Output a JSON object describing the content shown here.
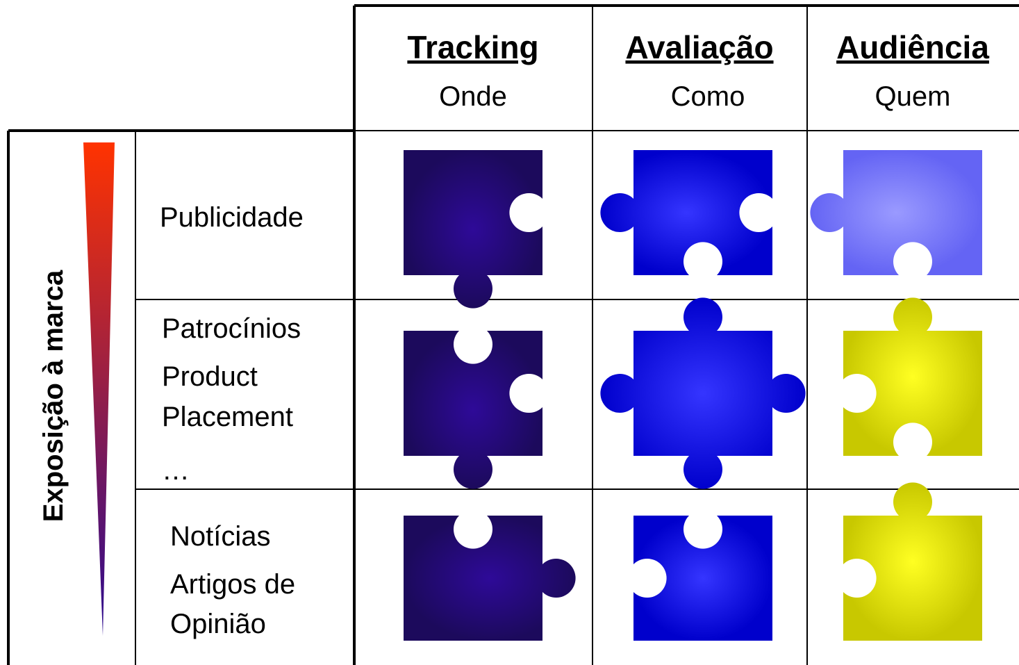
{
  "axis_label": "Exposição à marca",
  "columns": [
    {
      "title": "Tracking",
      "subtitle": "Onde"
    },
    {
      "title": "Avaliação",
      "subtitle": "Como"
    },
    {
      "title": "Audiência",
      "subtitle": "Quem"
    }
  ],
  "rows": [
    {
      "lines": [
        "Publicidade"
      ]
    },
    {
      "lines": [
        "Patrocínios",
        "Product",
        "Placement",
        "…"
      ]
    },
    {
      "lines": [
        "Notícias",
        "Artigos de",
        "Opinião"
      ]
    }
  ]
}
